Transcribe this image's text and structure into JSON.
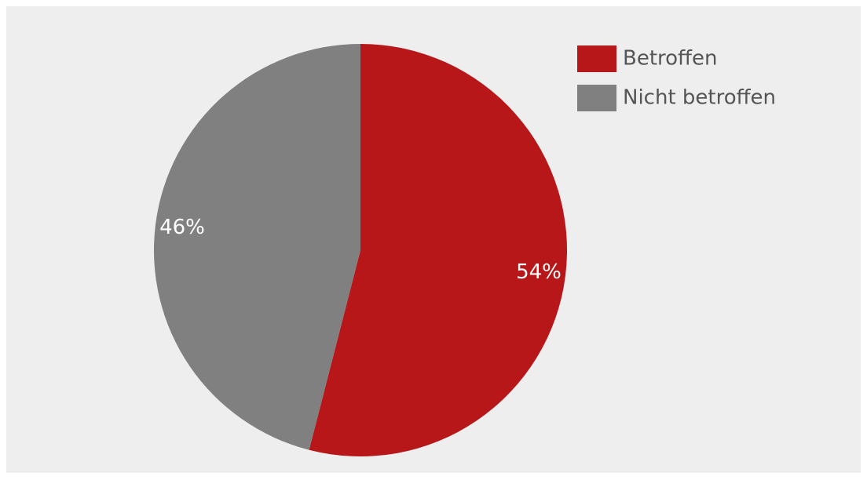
{
  "chart_data": {
    "type": "pie",
    "categories": [
      "Betroffen",
      "Nicht betroffen"
    ],
    "values": [
      54,
      46
    ],
    "value_labels": [
      "54%",
      "46%"
    ],
    "colors": [
      "#b71719",
      "#808080"
    ],
    "legend": "top-right"
  }
}
